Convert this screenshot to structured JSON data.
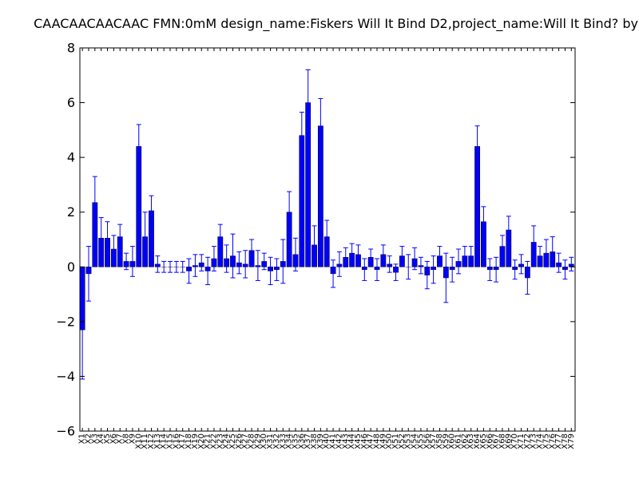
{
  "chart_data": {
    "type": "bar",
    "title": "CAACAACAACAAC  FMN:0mM  design_name:Fiskers Will It Bind D2,project_name:Will It Bind? by",
    "xlabel": "",
    "ylabel": "",
    "ylim": [
      -6,
      8
    ],
    "yticks": [
      -6,
      -4,
      -2,
      0,
      2,
      4,
      6,
      8
    ],
    "grid": false,
    "colors": {
      "bar": "#0000ff",
      "edge": "#000000",
      "error": "#0000ff"
    },
    "categories": [
      "X1",
      "X2",
      "X3",
      "X4",
      "X5",
      "X6",
      "X7",
      "X8",
      "X9",
      "X10",
      "X11",
      "X12",
      "X13",
      "X14",
      "X15",
      "X16",
      "X17",
      "X18",
      "X19",
      "X20",
      "X21",
      "X22",
      "X23",
      "X24",
      "X25",
      "X26",
      "X27",
      "X28",
      "X29",
      "X30",
      "X31",
      "X32",
      "X33",
      "X34",
      "X35",
      "X36",
      "X37",
      "X38",
      "X39",
      "X40",
      "X41",
      "X42",
      "X43",
      "X44",
      "X45",
      "X46",
      "X47",
      "X48",
      "X49",
      "X50",
      "X51",
      "X52",
      "X53",
      "X54",
      "X55",
      "X56",
      "X57",
      "X58",
      "X59",
      "X60",
      "X61",
      "X62",
      "X63",
      "X64",
      "X65",
      "X66",
      "X67",
      "X68",
      "X69",
      "X70",
      "X71",
      "X72",
      "X73",
      "X74",
      "X75",
      "X76",
      "X77",
      "X78",
      "X79"
    ],
    "values": [
      -2.3,
      -0.25,
      2.35,
      1.05,
      1.05,
      0.65,
      1.1,
      0.2,
      0.2,
      4.4,
      1.1,
      2.05,
      0.1,
      0,
      0,
      0,
      0,
      -0.15,
      0.05,
      0.15,
      -0.15,
      0.3,
      1.1,
      0.3,
      0.4,
      0.15,
      0.1,
      0.6,
      0.05,
      0.2,
      -0.15,
      -0.1,
      0.2,
      2.0,
      0.45,
      4.8,
      6.0,
      0.8,
      5.15,
      1.1,
      -0.25,
      0.1,
      0.35,
      0.5,
      0.45,
      -0.1,
      0.35,
      -0.1,
      0.45,
      0.1,
      -0.2,
      0.4,
      0,
      0.3,
      0.05,
      -0.3,
      -0.1,
      0.4,
      -0.4,
      -0.1,
      0.2,
      0.4,
      0.4,
      4.4,
      1.65,
      -0.1,
      -0.1,
      0.75,
      1.35,
      -0.1,
      0.1,
      -0.4,
      0.9,
      0.4,
      0.5,
      0.55,
      0.15,
      -0.1,
      0.1
    ],
    "errors": [
      1.8,
      1.0,
      0.95,
      0.75,
      0.6,
      0.5,
      0.45,
      0.3,
      0.55,
      0.8,
      0.9,
      0.55,
      0.3,
      0.2,
      0.2,
      0.2,
      0.2,
      0.45,
      0.4,
      0.3,
      0.5,
      0.45,
      0.45,
      0.5,
      0.8,
      0.4,
      0.5,
      0.4,
      0.55,
      0.3,
      0.5,
      0.4,
      0.8,
      0.75,
      0.6,
      0.85,
      1.2,
      0.7,
      1.0,
      0.6,
      0.5,
      0.45,
      0.35,
      0.35,
      0.35,
      0.4,
      0.3,
      0.4,
      0.35,
      0.3,
      0.3,
      0.35,
      0.45,
      0.4,
      0.3,
      0.5,
      0.5,
      0.35,
      0.9,
      0.45,
      0.45,
      0.35,
      0.35,
      0.75,
      0.55,
      0.4,
      0.45,
      0.4,
      0.5,
      0.35,
      0.35,
      0.6,
      0.6,
      0.35,
      0.5,
      0.55,
      0.35,
      0.35,
      0.25
    ]
  }
}
